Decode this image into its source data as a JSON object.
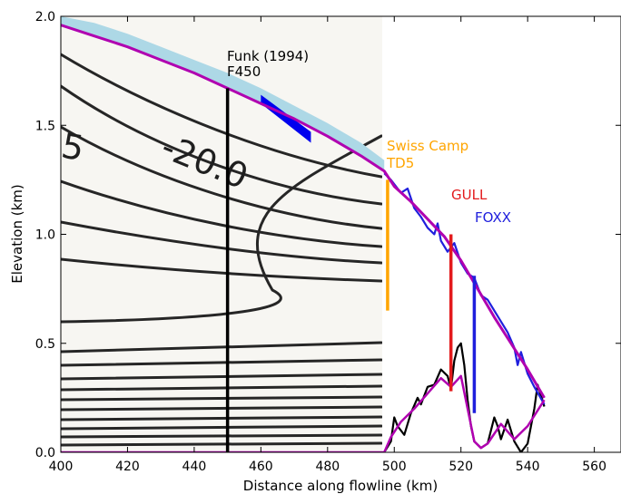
{
  "chart_data": {
    "type": "line",
    "xlabel": "Distance along flowline (km)",
    "ylabel": "Elevation (km)",
    "xlim": [
      400,
      568
    ],
    "ylim": [
      0.0,
      2.0
    ],
    "x_ticks": [
      "400",
      "420",
      "440",
      "460",
      "480",
      "500",
      "520",
      "540",
      "560"
    ],
    "y_ticks": [
      "0.0",
      "0.5",
      "1.0",
      "1.5",
      "2.0"
    ],
    "x_tick_values": [
      400,
      420,
      440,
      460,
      480,
      500,
      520,
      540,
      560
    ],
    "y_tick_values": [
      0.0,
      0.5,
      1.0,
      1.5,
      2.0
    ],
    "grid": false,
    "background_image": "scanned isotherm contour plot (Funk 1994), x 400-497 km",
    "contour_labels": [
      "-20.0",
      "5"
    ],
    "surface_profile": {
      "x": [
        400,
        410,
        420,
        430,
        440,
        450,
        460,
        470,
        480,
        490,
        497,
        500,
        505,
        510,
        515,
        520,
        525,
        530,
        535,
        540,
        545
      ],
      "y": [
        1.96,
        1.91,
        1.86,
        1.8,
        1.74,
        1.67,
        1.6,
        1.53,
        1.45,
        1.36,
        1.29,
        1.22,
        1.15,
        1.07,
        0.99,
        0.88,
        0.75,
        0.62,
        0.5,
        0.38,
        0.25
      ]
    },
    "bed_profile": {
      "x": [
        400,
        450,
        497,
        499,
        502,
        506,
        510,
        514,
        517,
        520,
        522,
        524,
        526,
        528,
        532,
        536,
        540,
        545
      ],
      "y": [
        0.0,
        0.0,
        0.0,
        0.07,
        0.14,
        0.2,
        0.27,
        0.34,
        0.3,
        0.35,
        0.2,
        0.05,
        0.02,
        0.04,
        0.13,
        0.06,
        0.12,
        0.24
      ]
    },
    "measured_surface": {
      "x": [
        497,
        499,
        502,
        504,
        506,
        508,
        510,
        512,
        513,
        514,
        516,
        518,
        520,
        522,
        524,
        526,
        528,
        530,
        532,
        534,
        536,
        537,
        538,
        540,
        542,
        545
      ],
      "y": [
        1.28,
        1.25,
        1.19,
        1.21,
        1.12,
        1.08,
        1.03,
        1.0,
        1.05,
        0.97,
        0.92,
        0.96,
        0.87,
        0.82,
        0.8,
        0.72,
        0.7,
        0.65,
        0.6,
        0.55,
        0.48,
        0.4,
        0.46,
        0.36,
        0.3,
        0.22
      ]
    },
    "measured_bed": {
      "x": [
        497,
        499,
        500,
        501,
        503,
        505,
        507,
        508,
        510,
        512,
        514,
        516,
        517,
        518,
        519,
        520,
        521,
        522,
        523,
        524,
        526,
        528,
        530,
        531,
        532,
        534,
        536,
        538,
        540,
        542,
        543,
        545
      ],
      "y": [
        0.0,
        0.05,
        0.16,
        0.12,
        0.08,
        0.18,
        0.25,
        0.22,
        0.3,
        0.31,
        0.38,
        0.35,
        0.29,
        0.42,
        0.48,
        0.5,
        0.4,
        0.24,
        0.12,
        0.05,
        0.02,
        0.04,
        0.16,
        0.12,
        0.06,
        0.15,
        0.05,
        0.0,
        0.04,
        0.2,
        0.31,
        0.21
      ]
    },
    "firn_band": {
      "x": [
        400,
        410,
        420,
        430,
        440,
        450,
        460,
        470,
        480,
        490,
        497
      ],
      "top": [
        2.0,
        1.97,
        1.92,
        1.86,
        1.8,
        1.74,
        1.67,
        1.59,
        1.51,
        1.42,
        1.34
      ],
      "bottom": [
        1.96,
        1.91,
        1.86,
        1.8,
        1.74,
        1.67,
        1.6,
        1.53,
        1.45,
        1.36,
        1.29
      ]
    },
    "blue_patch": {
      "x": [
        460,
        475
      ],
      "top": [
        1.64,
        1.47
      ],
      "bottom": [
        1.6,
        1.42
      ]
    },
    "boreholes": [
      {
        "label_line1": "Funk (1994)",
        "label_line2": "F450",
        "x": 450,
        "y_top": 1.67,
        "y_bottom": 0.0,
        "color": "#000000"
      },
      {
        "label_line1": "Swiss Camp",
        "label_line2": "TD5",
        "x": 498,
        "y_top": 1.25,
        "y_bottom": 0.65,
        "color": "#ffa500"
      },
      {
        "label_line1": "GULL",
        "label_line2": "",
        "x": 517,
        "y_top": 1.0,
        "y_bottom": 0.28,
        "color": "#e31a1c"
      },
      {
        "label_line1": "FOXX",
        "label_line2": "",
        "x": 524,
        "y_top": 0.81,
        "y_bottom": 0.18,
        "color": "#1f1fdd"
      }
    ],
    "colors": {
      "surface_profile": "#b000b0",
      "measured_surface": "#1f1fdd",
      "measured_bed": "#000000",
      "firn_band": "#add8e6",
      "blue_patch": "#0000ee"
    }
  }
}
